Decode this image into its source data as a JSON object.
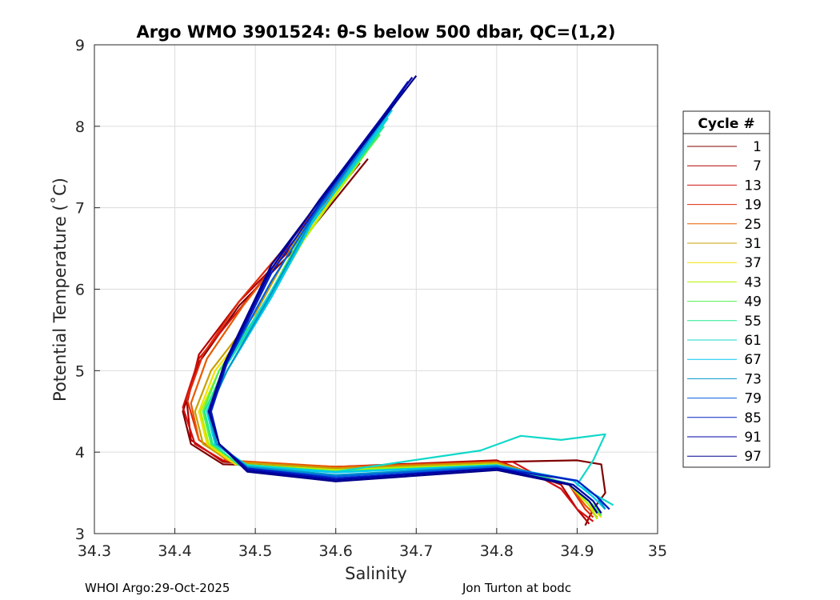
{
  "chart_data": {
    "type": "line",
    "title": "Argo WMO 3901524: θ-S below 500 dbar,  QC=(1,2)",
    "xlabel": "Salinity",
    "ylabel": "Potential Temperature (˚C)",
    "xlim": [
      34.3,
      35.0
    ],
    "ylim": [
      3,
      9
    ],
    "xticks": [
      "34.3",
      "34.4",
      "34.5",
      "34.6",
      "34.7",
      "34.8",
      "34.9",
      "35"
    ],
    "yticks": [
      "3",
      "4",
      "5",
      "6",
      "7",
      "8",
      "9"
    ],
    "grid": true,
    "legend": {
      "title": "Cycle #",
      "location": "outside-right",
      "entries": [
        {
          "label": "1",
          "color": "#800000"
        },
        {
          "label": "7",
          "color": "#b20000"
        },
        {
          "label": "13",
          "color": "#d21010"
        },
        {
          "label": "19",
          "color": "#e02a0a"
        },
        {
          "label": "25",
          "color": "#e85a00"
        },
        {
          "label": "31",
          "color": "#c8a000"
        },
        {
          "label": "37",
          "color": "#f0e000"
        },
        {
          "label": "43",
          "color": "#b4f000"
        },
        {
          "label": "49",
          "color": "#50f050"
        },
        {
          "label": "55",
          "color": "#20e890"
        },
        {
          "label": "61",
          "color": "#10d8c8"
        },
        {
          "label": "67",
          "color": "#00c8f0"
        },
        {
          "label": "73",
          "color": "#0096c8"
        },
        {
          "label": "79",
          "color": "#0060e0"
        },
        {
          "label": "85",
          "color": "#0020c0"
        },
        {
          "label": "91",
          "color": "#0000a8"
        },
        {
          "label": "97",
          "color": "#00008c"
        }
      ]
    },
    "series": [
      {
        "name": "1",
        "color": "#800000",
        "x": [
          34.64,
          34.55,
          34.48,
          34.43,
          34.41,
          34.42,
          34.46,
          34.6,
          34.8,
          34.9,
          34.93,
          34.935,
          34.92,
          34.91
        ],
        "y": [
          7.6,
          6.5,
          5.8,
          5.1,
          4.5,
          4.1,
          3.85,
          3.82,
          3.88,
          3.9,
          3.85,
          3.5,
          3.3,
          3.1
        ]
      },
      {
        "name": "7",
        "color": "#b20000",
        "x": [
          34.63,
          34.54,
          34.48,
          34.43,
          34.415,
          34.42,
          34.46,
          34.6,
          34.8,
          34.88,
          34.9,
          34.915
        ],
        "y": [
          7.55,
          6.45,
          5.85,
          5.2,
          4.6,
          4.15,
          3.88,
          3.82,
          3.9,
          3.6,
          3.3,
          3.12
        ]
      },
      {
        "name": "13",
        "color": "#d21010",
        "x": [
          34.63,
          34.54,
          34.48,
          34.43,
          34.41,
          34.425,
          34.46,
          34.6,
          34.82,
          34.88,
          34.9,
          34.92
        ],
        "y": [
          7.6,
          6.5,
          5.75,
          5.15,
          4.55,
          4.1,
          3.9,
          3.8,
          3.88,
          3.55,
          3.3,
          3.15
        ]
      },
      {
        "name": "19",
        "color": "#e02a0a",
        "x": [
          34.63,
          34.54,
          34.48,
          34.435,
          34.415,
          34.43,
          34.47,
          34.6,
          34.8,
          34.89,
          34.91,
          34.92
        ],
        "y": [
          7.65,
          6.55,
          5.85,
          5.2,
          4.65,
          4.15,
          3.88,
          3.8,
          3.88,
          3.6,
          3.3,
          3.2
        ]
      },
      {
        "name": "25",
        "color": "#e85a00",
        "x": [
          34.635,
          34.545,
          34.485,
          34.44,
          34.42,
          34.43,
          34.465,
          34.6,
          34.8,
          34.89,
          34.91,
          34.925
        ],
        "y": [
          7.7,
          6.55,
          5.8,
          5.15,
          4.6,
          4.15,
          3.9,
          3.82,
          3.88,
          3.6,
          3.35,
          3.2
        ]
      },
      {
        "name": "31",
        "color": "#c8a000",
        "x": [
          34.64,
          34.55,
          34.5,
          34.445,
          34.425,
          34.435,
          34.47,
          34.6,
          34.8,
          34.89,
          34.915,
          34.925
        ],
        "y": [
          7.8,
          6.6,
          5.7,
          5.0,
          4.5,
          4.1,
          3.88,
          3.8,
          3.87,
          3.6,
          3.35,
          3.18
        ]
      },
      {
        "name": "37",
        "color": "#f0e000",
        "x": [
          34.645,
          34.555,
          34.505,
          34.45,
          34.43,
          34.44,
          34.475,
          34.6,
          34.8,
          34.89,
          34.915,
          34.93
        ],
        "y": [
          7.8,
          6.55,
          5.7,
          5.0,
          4.5,
          4.1,
          3.85,
          3.78,
          3.85,
          3.6,
          3.35,
          3.2
        ]
      },
      {
        "name": "43",
        "color": "#b4f000",
        "x": [
          34.65,
          34.56,
          34.51,
          34.455,
          34.432,
          34.442,
          34.48,
          34.6,
          34.8,
          34.89,
          34.915,
          34.925
        ],
        "y": [
          7.85,
          6.6,
          5.75,
          5.0,
          4.5,
          4.1,
          3.85,
          3.78,
          3.85,
          3.6,
          3.35,
          3.18
        ]
      },
      {
        "name": "49",
        "color": "#50f050",
        "x": [
          34.655,
          34.56,
          34.51,
          34.455,
          34.435,
          34.445,
          34.48,
          34.6,
          34.8,
          34.89,
          34.92,
          34.93
        ],
        "y": [
          7.9,
          6.7,
          5.8,
          5.0,
          4.5,
          4.1,
          3.85,
          3.76,
          3.84,
          3.6,
          3.35,
          3.22
        ]
      },
      {
        "name": "55",
        "color": "#20e890",
        "x": [
          34.66,
          34.565,
          34.515,
          34.46,
          34.437,
          34.447,
          34.48,
          34.6,
          34.8,
          34.895,
          34.92,
          34.93
        ],
        "y": [
          8.0,
          6.75,
          5.85,
          5.0,
          4.5,
          4.1,
          3.84,
          3.76,
          3.84,
          3.6,
          3.4,
          3.25
        ]
      },
      {
        "name": "61",
        "color": "#10d8c8",
        "x": [
          34.665,
          34.57,
          34.515,
          34.46,
          34.44,
          34.45,
          34.49,
          34.6,
          34.78,
          34.83,
          34.88,
          34.935,
          34.92,
          34.9,
          34.945
        ],
        "y": [
          8.1,
          6.8,
          5.9,
          5.0,
          4.5,
          4.1,
          3.84,
          3.76,
          4.02,
          4.2,
          4.15,
          4.22,
          3.9,
          3.6,
          3.35
        ]
      },
      {
        "name": "67",
        "color": "#00c8f0",
        "x": [
          34.67,
          34.57,
          34.52,
          34.465,
          34.44,
          34.45,
          34.49,
          34.6,
          34.8,
          34.895,
          34.92,
          34.935
        ],
        "y": [
          8.2,
          6.8,
          5.9,
          5.0,
          4.5,
          4.1,
          3.82,
          3.75,
          3.84,
          3.65,
          3.45,
          3.3
        ]
      },
      {
        "name": "73",
        "color": "#0096c8",
        "x": [
          34.675,
          34.57,
          34.52,
          34.465,
          34.442,
          34.452,
          34.49,
          34.6,
          34.8,
          34.9,
          34.925,
          34.935
        ],
        "y": [
          8.3,
          6.85,
          5.95,
          5.0,
          4.5,
          4.1,
          3.82,
          3.72,
          3.83,
          3.65,
          3.45,
          3.3
        ]
      },
      {
        "name": "79",
        "color": "#0060e0",
        "x": [
          34.685,
          34.575,
          34.52,
          34.465,
          34.445,
          34.455,
          34.49,
          34.6,
          34.8,
          34.9,
          34.925,
          34.94
        ],
        "y": [
          8.45,
          6.95,
          6.1,
          5.1,
          4.5,
          4.1,
          3.8,
          3.7,
          3.82,
          3.65,
          3.45,
          3.3
        ]
      },
      {
        "name": "85",
        "color": "#0020c0",
        "x": [
          34.69,
          34.58,
          34.52,
          34.465,
          34.445,
          34.455,
          34.49,
          34.6,
          34.8,
          34.9,
          34.925,
          34.94
        ],
        "y": [
          8.55,
          7.05,
          6.2,
          5.1,
          4.5,
          4.1,
          3.8,
          3.68,
          3.8,
          3.65,
          3.45,
          3.3
        ]
      },
      {
        "name": "91",
        "color": "#0000a8",
        "x": [
          34.695,
          34.58,
          34.52,
          34.463,
          34.443,
          34.455,
          34.49,
          34.6,
          34.8,
          34.895,
          34.92,
          34.93
        ],
        "y": [
          8.6,
          7.1,
          6.25,
          5.1,
          4.5,
          4.1,
          3.78,
          3.66,
          3.8,
          3.6,
          3.4,
          3.25
        ]
      },
      {
        "name": "97",
        "color": "#00008c",
        "x": [
          34.7,
          34.585,
          34.52,
          34.462,
          34.442,
          34.455,
          34.49,
          34.6,
          34.8,
          34.89,
          34.915,
          34.925
        ],
        "y": [
          8.62,
          7.15,
          6.3,
          5.1,
          4.5,
          4.1,
          3.76,
          3.64,
          3.78,
          3.6,
          3.4,
          3.25
        ]
      }
    ]
  },
  "footer": {
    "left": "WHOI Argo:29-Oct-2025",
    "right": "Jon Turton at bodc"
  }
}
